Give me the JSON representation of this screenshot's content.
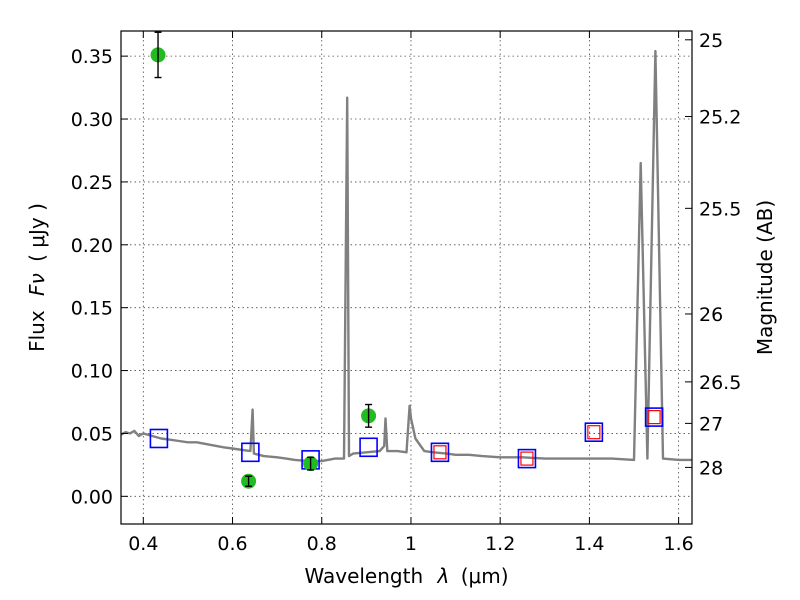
{
  "chart_data": {
    "type": "scatter",
    "title": "",
    "xlabel_text": "Wavelength",
    "xlabel_symbol": "λ",
    "xlabel_unit": "(μm)",
    "ylabel_text": "Flux",
    "ylabel_symbol": "Fν",
    "ylabel_unit": "( μJy )",
    "y2label": "Magnitude (AB)",
    "xlim": [
      0.35,
      1.63
    ],
    "ylim": [
      -0.022,
      0.37
    ],
    "grid": true,
    "x_ticks": [
      {
        "v": 0.4,
        "label": "0.4"
      },
      {
        "v": 0.6,
        "label": "0.6"
      },
      {
        "v": 0.8,
        "label": "0.8"
      },
      {
        "v": 1.0,
        "label": "1"
      },
      {
        "v": 1.2,
        "label": "1.2"
      },
      {
        "v": 1.4,
        "label": "1.4"
      },
      {
        "v": 1.6,
        "label": "1.6"
      }
    ],
    "y_ticks": [
      {
        "v": 0.0,
        "label": "0.00"
      },
      {
        "v": 0.05,
        "label": "0.05"
      },
      {
        "v": 0.1,
        "label": "0.10"
      },
      {
        "v": 0.15,
        "label": "0.15"
      },
      {
        "v": 0.2,
        "label": "0.20"
      },
      {
        "v": 0.25,
        "label": "0.25"
      },
      {
        "v": 0.3,
        "label": "0.30"
      },
      {
        "v": 0.35,
        "label": "0.35"
      }
    ],
    "y2_ticks": [
      {
        "label": "25",
        "flux": 0.363
      },
      {
        "label": "25.2",
        "flux": 0.302
      },
      {
        "label": "25.5",
        "flux": 0.229
      },
      {
        "label": "26",
        "flux": 0.145
      },
      {
        "label": "26.5",
        "flux": 0.091
      },
      {
        "label": "27",
        "flux": 0.058
      },
      {
        "label": "28",
        "flux": 0.023
      }
    ],
    "colors": {
      "spectrum": "#808080",
      "observed": "#22bb22",
      "model_box": "#0000ff",
      "model_box_inner": "#ff0000",
      "errorbar": "#000000"
    },
    "series": [
      {
        "kind": "spectrum",
        "points": [
          [
            0.35,
            0.049
          ],
          [
            0.36,
            0.051
          ],
          [
            0.37,
            0.05
          ],
          [
            0.38,
            0.052
          ],
          [
            0.39,
            0.048
          ],
          [
            0.4,
            0.05
          ],
          [
            0.42,
            0.048
          ],
          [
            0.44,
            0.046
          ],
          [
            0.46,
            0.045
          ],
          [
            0.48,
            0.044
          ],
          [
            0.5,
            0.043
          ],
          [
            0.52,
            0.043
          ],
          [
            0.55,
            0.041
          ],
          [
            0.58,
            0.039
          ],
          [
            0.6,
            0.038
          ],
          [
            0.62,
            0.037
          ],
          [
            0.64,
            0.036
          ],
          [
            0.645,
            0.069
          ],
          [
            0.648,
            0.034
          ],
          [
            0.67,
            0.032
          ],
          [
            0.7,
            0.031
          ],
          [
            0.72,
            0.03
          ],
          [
            0.74,
            0.029
          ],
          [
            0.77,
            0.028
          ],
          [
            0.8,
            0.028
          ],
          [
            0.83,
            0.03
          ],
          [
            0.85,
            0.03
          ],
          [
            0.857,
            0.317
          ],
          [
            0.861,
            0.032
          ],
          [
            0.87,
            0.034
          ],
          [
            0.9,
            0.035
          ],
          [
            0.93,
            0.036
          ],
          [
            0.94,
            0.04
          ],
          [
            0.943,
            0.062
          ],
          [
            0.947,
            0.036
          ],
          [
            0.97,
            0.036
          ],
          [
            0.99,
            0.035
          ],
          [
            0.997,
            0.072
          ],
          [
            1.0,
            0.062
          ],
          [
            1.01,
            0.046
          ],
          [
            1.03,
            0.036
          ],
          [
            1.05,
            0.035
          ],
          [
            1.08,
            0.034
          ],
          [
            1.1,
            0.033
          ],
          [
            1.13,
            0.033
          ],
          [
            1.16,
            0.032
          ],
          [
            1.2,
            0.031
          ],
          [
            1.25,
            0.031
          ],
          [
            1.3,
            0.03
          ],
          [
            1.35,
            0.03
          ],
          [
            1.4,
            0.03
          ],
          [
            1.45,
            0.03
          ],
          [
            1.5,
            0.029
          ],
          [
            1.515,
            0.265
          ],
          [
            1.53,
            0.03
          ],
          [
            1.548,
            0.354
          ],
          [
            1.565,
            0.03
          ],
          [
            1.6,
            0.029
          ],
          [
            1.63,
            0.029
          ]
        ]
      },
      {
        "kind": "observed",
        "points": [
          {
            "x": 0.433,
            "y": 0.351,
            "err": 0.018
          },
          {
            "x": 0.636,
            "y": 0.012,
            "err": 0.004
          },
          {
            "x": 0.775,
            "y": 0.026,
            "err": 0.005
          },
          {
            "x": 0.905,
            "y": 0.064,
            "err": 0.009
          }
        ]
      },
      {
        "kind": "model_blue",
        "points": [
          {
            "x": 0.435,
            "y": 0.046
          },
          {
            "x": 0.64,
            "y": 0.035
          },
          {
            "x": 0.775,
            "y": 0.029
          },
          {
            "x": 0.905,
            "y": 0.039
          },
          {
            "x": 1.065,
            "y": 0.035
          },
          {
            "x": 1.26,
            "y": 0.03
          },
          {
            "x": 1.41,
            "y": 0.051
          },
          {
            "x": 1.545,
            "y": 0.063
          }
        ]
      },
      {
        "kind": "model_red",
        "points": [
          {
            "x": 1.065,
            "y": 0.035
          },
          {
            "x": 1.26,
            "y": 0.03
          },
          {
            "x": 1.41,
            "y": 0.051
          },
          {
            "x": 1.545,
            "y": 0.063
          }
        ]
      }
    ]
  }
}
